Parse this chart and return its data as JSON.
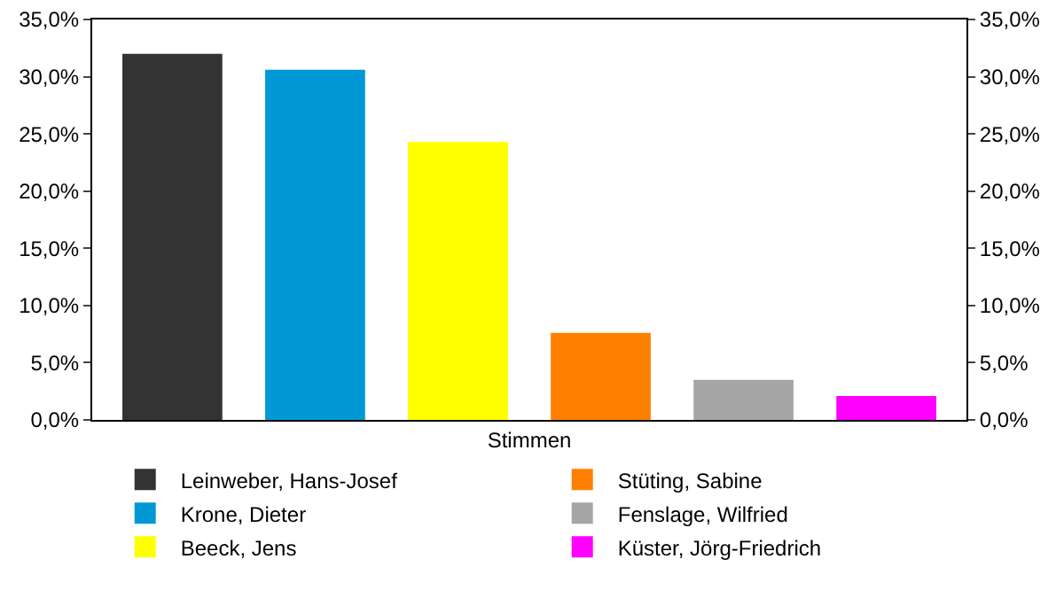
{
  "chart_data": {
    "type": "bar",
    "categories": [
      "Stimmen"
    ],
    "series": [
      {
        "name": "Leinweber, Hans-Josef",
        "color": "#333333",
        "values": [
          32.0
        ]
      },
      {
        "name": "Krone, Dieter",
        "color": "#0099d6",
        "values": [
          30.6
        ]
      },
      {
        "name": "Beeck, Jens",
        "color": "#ffff00",
        "values": [
          24.3
        ]
      },
      {
        "name": "Stüting, Sabine",
        "color": "#ff8000",
        "values": [
          7.6
        ]
      },
      {
        "name": "Fenslage, Wilfried",
        "color": "#a6a6a6",
        "values": [
          3.5
        ]
      },
      {
        "name": "Küster, Jörg-Friedrich",
        "color": "#ff00ff",
        "values": [
          2.1
        ]
      }
    ],
    "ylim": [
      0,
      35
    ],
    "yticks": [
      {
        "value": 0,
        "label": "0,0%"
      },
      {
        "value": 5,
        "label": "5,0%"
      },
      {
        "value": 10,
        "label": "10,0%"
      },
      {
        "value": 15,
        "label": "15,0%"
      },
      {
        "value": 20,
        "label": "20,0%"
      },
      {
        "value": 25,
        "label": "25,0%"
      },
      {
        "value": 30,
        "label": "30,0%"
      },
      {
        "value": 35,
        "label": "35,0%"
      }
    ],
    "grid": false,
    "legend": "bottom"
  }
}
